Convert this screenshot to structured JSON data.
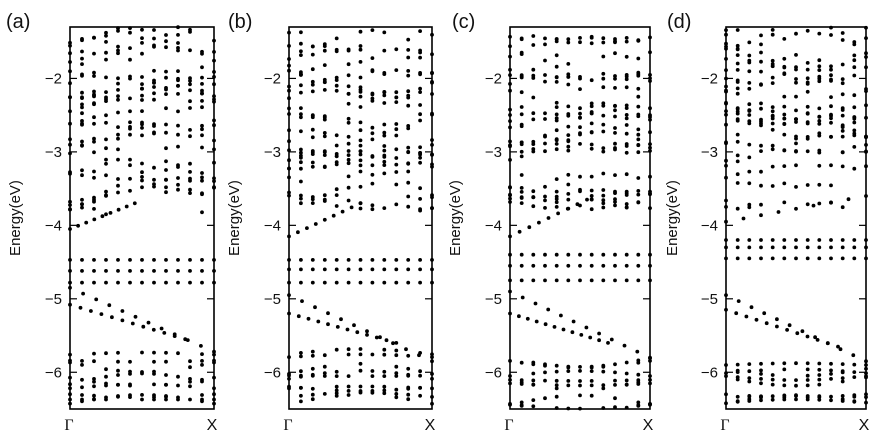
{
  "chart_data": [
    {
      "type": "scatter",
      "panel_label": "(a)",
      "ylabel": "Energy(eV)",
      "xticklabels": [
        "Γ",
        "X"
      ],
      "yticks": [
        -6,
        -5,
        -4,
        -3,
        -2
      ],
      "ylim": [
        -6.5,
        -1.3
      ],
      "xlim": [
        0,
        1
      ],
      "grid": false,
      "flat_bands": [
        -4.47,
        -4.62,
        -4.78
      ],
      "gap_diagonal": [
        [
          0.0,
          -4.05
        ],
        [
          0.45,
          -3.7
        ]
      ],
      "lower_diagonals": [
        [
          [
            0.0,
            -4.85
          ],
          [
            1.0,
            -5.72
          ]
        ],
        [
          [
            0.0,
            -5.08
          ],
          [
            0.8,
            -5.55
          ]
        ]
      ],
      "conduction_range": [
        -3.8,
        -1.35
      ],
      "valence_range": [
        -6.45,
        -5.75
      ]
    },
    {
      "type": "scatter",
      "panel_label": "(b)",
      "ylabel": "Energy(eV)",
      "xticklabels": [
        "Γ",
        "X"
      ],
      "yticks": [
        -6,
        -5,
        -4,
        -3,
        -2
      ],
      "ylim": [
        -6.5,
        -1.3
      ],
      "xlim": [
        0,
        1
      ],
      "grid": false,
      "flat_bands": [
        -4.47,
        -4.6,
        -4.78
      ],
      "gap_diagonal": [
        [
          0.0,
          -4.15
        ],
        [
          0.5,
          -3.7
        ]
      ],
      "lower_diagonals": [
        [
          [
            0.0,
            -4.95
          ],
          [
            1.0,
            -5.85
          ]
        ],
        [
          [
            0.0,
            -5.2
          ],
          [
            0.75,
            -5.6
          ]
        ]
      ],
      "conduction_range": [
        -3.75,
        -1.35
      ],
      "valence_range": [
        -6.45,
        -5.75
      ]
    },
    {
      "type": "scatter",
      "panel_label": "(c)",
      "ylabel": "Energy(eV)",
      "xticklabels": [
        "Γ",
        "X"
      ],
      "yticks": [
        -6,
        -5,
        -4,
        -3,
        -2
      ],
      "ylim": [
        -6.5,
        -1.3
      ],
      "xlim": [
        0,
        1
      ],
      "grid": false,
      "flat_bands": [
        -4.4,
        -4.55,
        -4.75
      ],
      "gap_diagonal": [
        [
          0.0,
          -4.15
        ],
        [
          0.55,
          -3.65
        ]
      ],
      "lower_diagonals": [
        [
          [
            0.0,
            -4.9
          ],
          [
            1.0,
            -5.8
          ]
        ],
        [
          [
            0.0,
            -5.2
          ],
          [
            0.7,
            -5.6
          ]
        ]
      ],
      "conduction_range": [
        -3.75,
        -1.35
      ],
      "valence_range": [
        -6.45,
        -5.75
      ]
    },
    {
      "type": "scatter",
      "panel_label": "(d)",
      "ylabel": "Energy(eV)",
      "xticklabels": [
        "Γ",
        "X"
      ],
      "yticks": [
        -6,
        -5,
        -4,
        -3,
        -2
      ],
      "ylim": [
        -6.5,
        -1.3
      ],
      "xlim": [
        0,
        1
      ],
      "grid": false,
      "flat_bands": [
        -4.2,
        -4.3,
        -4.45
      ],
      "gap_diagonal": [
        [
          0.0,
          -3.95
        ],
        [
          1.0,
          -3.6
        ]
      ],
      "lower_diagonals": [
        [
          [
            0.0,
            -4.95
          ],
          [
            1.0,
            -5.85
          ]
        ],
        [
          [
            0.0,
            -5.15
          ],
          [
            0.8,
            -5.65
          ]
        ]
      ],
      "conduction_range": [
        -3.8,
        -1.35
      ],
      "valence_range": [
        -6.45,
        -5.8
      ]
    }
  ]
}
